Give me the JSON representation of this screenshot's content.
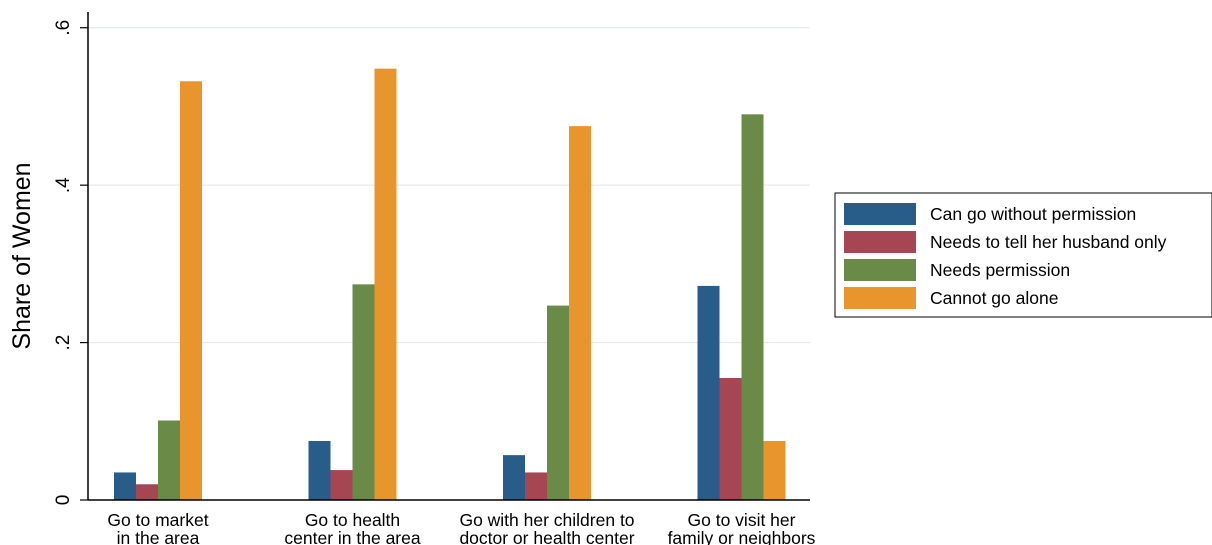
{
  "chart_data": {
    "type": "bar",
    "title": "",
    "xlabel": "",
    "ylabel": "Share of Women",
    "ylim": [
      0,
      0.62
    ],
    "yticks": [
      0,
      0.2,
      0.4,
      0.6
    ],
    "ytick_labels": [
      "0",
      ".2",
      ".4",
      ".6"
    ],
    "grid": true,
    "legend_position": "right",
    "categories": [
      [
        "Go to market",
        "in the area"
      ],
      [
        "Go to health",
        "center in the area"
      ],
      [
        "Go with her children to",
        "doctor or health center"
      ],
      [
        "Go to visit her",
        "family or neighbors"
      ]
    ],
    "series": [
      {
        "name": "Can go without permission",
        "color": "#285c89",
        "values": [
          0.035,
          0.075,
          0.057,
          0.272
        ]
      },
      {
        "name": "Needs to tell her husband only",
        "color": "#a64652",
        "values": [
          0.02,
          0.038,
          0.035,
          0.155
        ]
      },
      {
        "name": "Needs permission",
        "color": "#6a8b47",
        "values": [
          0.101,
          0.274,
          0.247,
          0.49
        ]
      },
      {
        "name": "Cannot go alone",
        "color": "#e8952e",
        "values": [
          0.532,
          0.548,
          0.475,
          0.075
        ]
      }
    ]
  }
}
